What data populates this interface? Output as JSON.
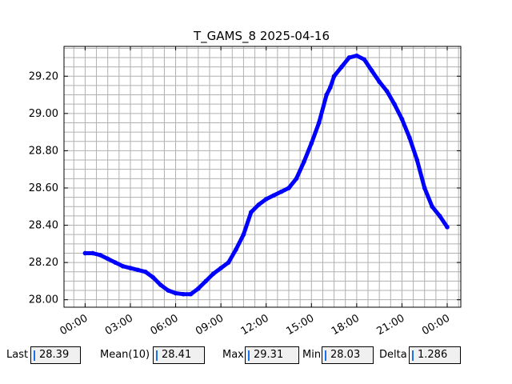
{
  "chart_data": {
    "type": "line",
    "title": "T_GAMS_8 2025-04-16",
    "xlabel": "",
    "ylabel": "",
    "x_tick_labels": [
      "00:00",
      "03:00",
      "06:00",
      "09:00",
      "12:00",
      "15:00",
      "18:00",
      "21:00",
      "00:00"
    ],
    "x_tick_hours": [
      0,
      3,
      6,
      9,
      12,
      15,
      18,
      21,
      24
    ],
    "xlim_hours": [
      -1.4,
      24.9
    ],
    "y_tick_labels": [
      "28.00",
      "28.20",
      "28.40",
      "28.60",
      "28.80",
      "29.00",
      "29.20"
    ],
    "y_ticks": [
      28.0,
      28.2,
      28.4,
      28.6,
      28.8,
      29.0,
      29.2
    ],
    "ylim": [
      27.96,
      29.36
    ],
    "grid": true,
    "series_color": "#0000ff",
    "x_hours": [
      0,
      0.5,
      1,
      1.5,
      2,
      2.5,
      3,
      3.5,
      4,
      4.5,
      5,
      5.5,
      6,
      6.5,
      7,
      7.5,
      8,
      8.5,
      9,
      9.5,
      10,
      10.5,
      11,
      11.5,
      12,
      12.5,
      13,
      13.5,
      14,
      14.5,
      15,
      15.5,
      16,
      16.25,
      16.5,
      17,
      17.5,
      18,
      18.5,
      19,
      19.5,
      20,
      20.5,
      21,
      21.5,
      22,
      22.5,
      23,
      23.5,
      24
    ],
    "y_values": [
      28.25,
      28.25,
      28.24,
      28.22,
      28.2,
      28.18,
      28.17,
      28.16,
      28.15,
      28.12,
      28.08,
      28.05,
      28.035,
      28.03,
      28.03,
      28.06,
      28.1,
      28.14,
      28.17,
      28.2,
      28.27,
      28.35,
      28.47,
      28.51,
      28.54,
      28.56,
      28.58,
      28.6,
      28.65,
      28.74,
      28.84,
      28.95,
      29.1,
      29.14,
      29.2,
      29.25,
      29.3,
      29.31,
      29.29,
      29.23,
      29.17,
      29.12,
      29.05,
      28.97,
      28.87,
      28.75,
      28.6,
      28.5,
      28.45,
      28.39
    ]
  },
  "stats": {
    "last_label": "Last",
    "last_value": "28.39",
    "mean_label": "Mean(10)",
    "mean_value": "28.41",
    "max_label": "Max",
    "max_value": "29.31",
    "min_label": "Min",
    "min_value": "28.03",
    "delta_label": "Delta",
    "delta_value": "1.286"
  }
}
